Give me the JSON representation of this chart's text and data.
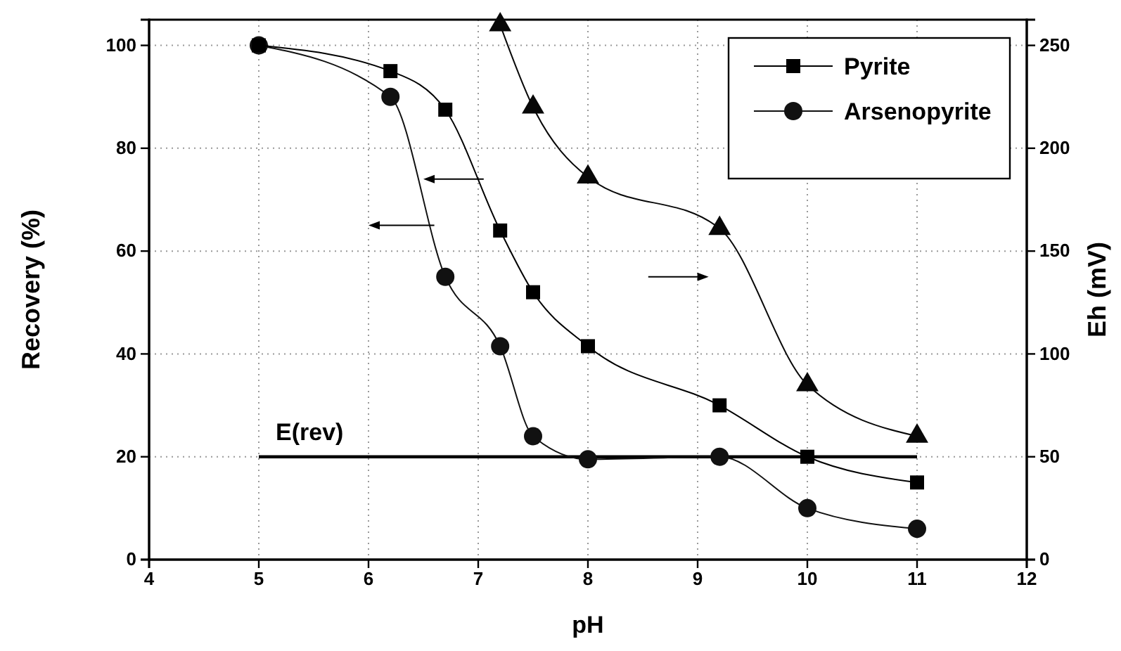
{
  "chart_data": {
    "type": "line",
    "xlabel": "pH",
    "ylabel": "Recovery (%)",
    "y2label": "Eh (mV)",
    "xlim": [
      4,
      12
    ],
    "xticks": [
      4,
      5,
      6,
      7,
      8,
      9,
      10,
      11,
      12
    ],
    "ylim": [
      0,
      105
    ],
    "yticks": [
      0,
      20,
      40,
      60,
      80,
      100
    ],
    "y2lim": [
      0,
      262.5
    ],
    "y2ticks": [
      0,
      50,
      100,
      150,
      200,
      250
    ],
    "grid": true,
    "legend": "top right",
    "line_style": "solid",
    "series": [
      {
        "name": "Pyrite",
        "color": "#000000",
        "marker": "square",
        "x": [
          5,
          6.2,
          6.7,
          7.2,
          7.5,
          8,
          9.2,
          10,
          11
        ],
        "values": [
          100,
          95,
          87.5,
          64,
          52,
          41.5,
          30,
          20,
          15
        ]
      },
      {
        "name": "Arsenopyrite",
        "color": "#111111",
        "marker": "circle",
        "x": [
          5,
          6.2,
          6.7,
          7.2,
          7.5,
          8,
          9.2,
          10,
          11
        ],
        "values": [
          100,
          90,
          55,
          41.5,
          24,
          19.5,
          20,
          10,
          6
        ]
      },
      {
        "color": "#080808",
        "marker": "triangle",
        "axis": "y2",
        "x": [
          7.2,
          7.5,
          8,
          9.2,
          10,
          11
        ],
        "values": [
          260,
          220,
          186,
          161,
          85,
          60
        ]
      },
      {
        "name": "E(rev)",
        "color": "#000000",
        "marker": "none",
        "x": [
          5,
          11
        ],
        "values": [
          20,
          20
        ]
      }
    ]
  }
}
